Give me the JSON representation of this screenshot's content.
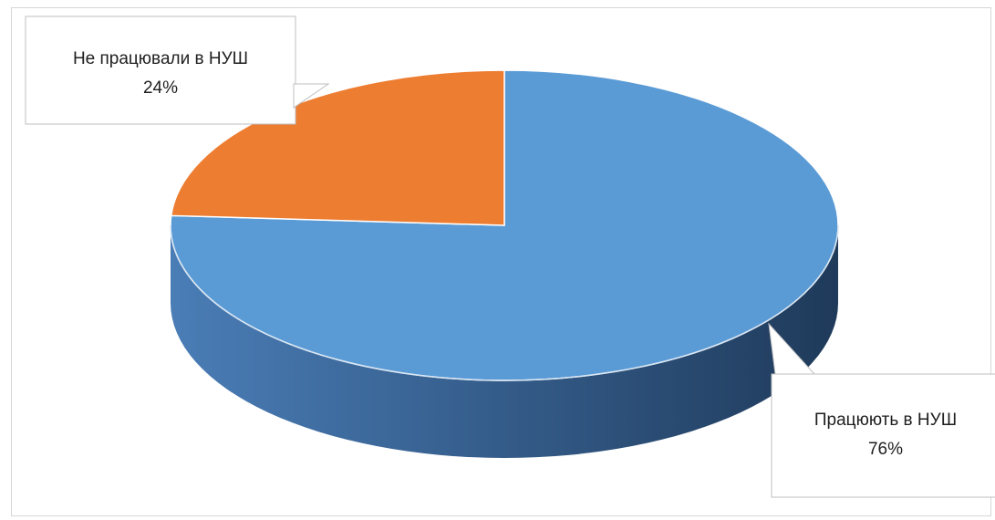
{
  "chart_data": {
    "type": "pie",
    "style": "3d",
    "title": "",
    "slices": [
      {
        "label": "Працюють в НУШ",
        "value": 76,
        "percent_label": "76%",
        "color": "#5B9BD5"
      },
      {
        "label": "Не працювали в НУШ",
        "value": 24,
        "percent_label": "24%",
        "color": "#ED7D31"
      }
    ],
    "legend": "none"
  }
}
